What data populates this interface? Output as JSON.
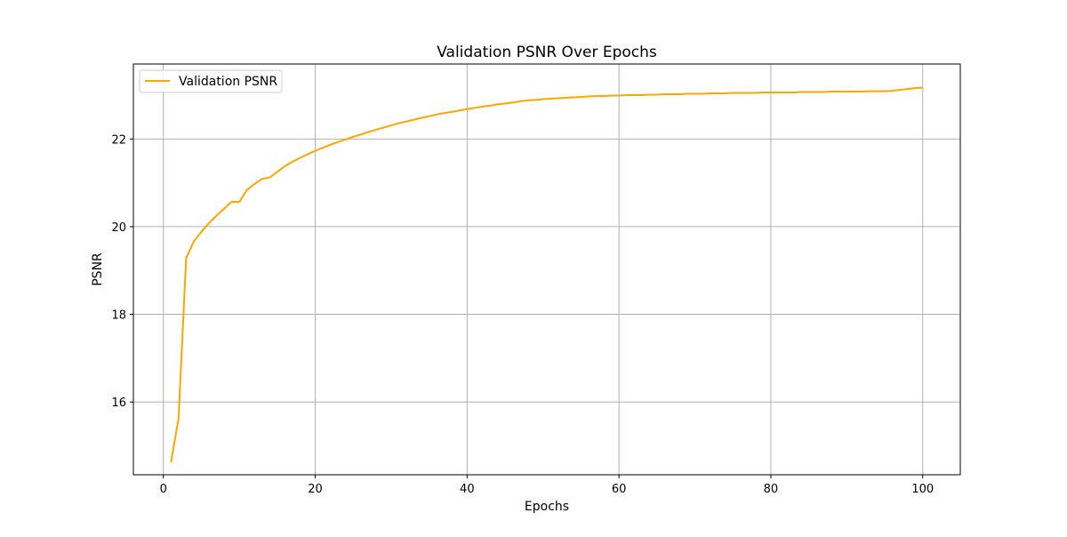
{
  "chart_data": {
    "type": "line",
    "title": "Validation PSNR Over Epochs",
    "xlabel": "Epochs",
    "ylabel": "PSNR",
    "xlim": [
      -3.95,
      104.95
    ],
    "ylim": [
      14.34,
      23.71
    ],
    "xticks": [
      0,
      20,
      40,
      60,
      80,
      100
    ],
    "xtick_labels": [
      "0",
      "20",
      "40",
      "60",
      "80",
      "100"
    ],
    "yticks": [
      16,
      18,
      20,
      22
    ],
    "ytick_labels": [
      "16",
      "18",
      "20",
      "22"
    ],
    "grid": true,
    "legend_position": "upper-left",
    "series": [
      {
        "name": "Validation PSNR",
        "color": "#FFA500",
        "x": [
          1,
          2,
          3,
          4,
          5,
          6,
          7,
          8,
          9,
          10,
          11,
          12,
          13,
          14,
          15,
          16,
          17,
          18,
          19,
          20,
          21,
          22,
          23,
          24,
          25,
          26,
          27,
          28,
          29,
          30,
          31,
          32,
          33,
          34,
          35,
          36,
          37,
          38,
          39,
          40,
          41,
          42,
          43,
          44,
          45,
          46,
          47,
          48,
          49,
          50,
          51,
          52,
          53,
          54,
          55,
          56,
          57,
          58,
          59,
          60,
          61,
          62,
          63,
          64,
          65,
          66,
          67,
          68,
          69,
          70,
          71,
          72,
          73,
          74,
          75,
          76,
          77,
          78,
          79,
          80,
          81,
          82,
          83,
          84,
          85,
          86,
          87,
          88,
          89,
          90,
          91,
          92,
          93,
          94,
          95,
          96,
          97,
          98,
          99,
          100
        ],
        "values": [
          14.62,
          15.62,
          19.28,
          19.66,
          19.88,
          20.08,
          20.25,
          20.41,
          20.57,
          20.56,
          20.84,
          20.97,
          21.09,
          21.12,
          21.25,
          21.38,
          21.48,
          21.57,
          21.65,
          21.73,
          21.8,
          21.87,
          21.93,
          21.99,
          22.05,
          22.1,
          22.16,
          22.21,
          22.26,
          22.31,
          22.36,
          22.4,
          22.44,
          22.48,
          22.52,
          22.56,
          22.59,
          22.62,
          22.65,
          22.68,
          22.71,
          22.74,
          22.76,
          22.79,
          22.81,
          22.83,
          22.86,
          22.88,
          22.89,
          22.91,
          22.92,
          22.93,
          22.94,
          22.95,
          22.96,
          22.97,
          22.98,
          22.98,
          22.99,
          22.99,
          23.0,
          23.0,
          23.0,
          23.01,
          23.01,
          23.02,
          23.02,
          23.02,
          23.03,
          23.03,
          23.03,
          23.04,
          23.04,
          23.04,
          23.05,
          23.05,
          23.05,
          23.05,
          23.06,
          23.06,
          23.06,
          23.06,
          23.06,
          23.07,
          23.07,
          23.07,
          23.07,
          23.08,
          23.08,
          23.08,
          23.08,
          23.08,
          23.09,
          23.09,
          23.09,
          23.1,
          23.12,
          23.14,
          23.16,
          23.17
        ]
      }
    ]
  }
}
